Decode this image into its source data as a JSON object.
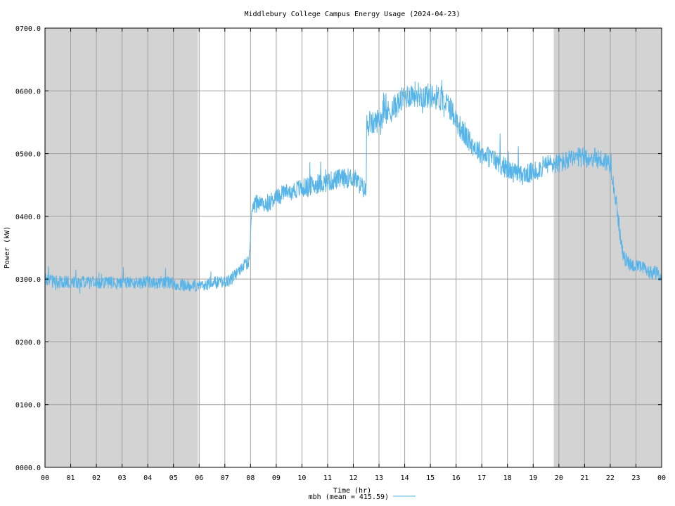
{
  "chart_data": {
    "type": "line",
    "title": "Middlebury College Campus Energy Usage (2024-04-23)",
    "xlabel": "Time (hr)",
    "ylabel": "Power (kW)",
    "xlim": [
      0,
      24
    ],
    "ylim": [
      0,
      700
    ],
    "x_ticks": [
      "00",
      "01",
      "02",
      "03",
      "04",
      "05",
      "06",
      "07",
      "08",
      "09",
      "10",
      "11",
      "12",
      "13",
      "14",
      "15",
      "16",
      "17",
      "18",
      "19",
      "20",
      "21",
      "22",
      "23",
      "00"
    ],
    "y_ticks": [
      "0000.0",
      "0100.0",
      "0200.0",
      "0300.0",
      "0400.0",
      "0500.0",
      "0600.0",
      "0700.0"
    ],
    "grid": true,
    "shaded_periods": [
      [
        0,
        5.95
      ],
      [
        19.8,
        24
      ]
    ],
    "colors": {
      "series": "#56b4e9",
      "shade": "#d3d3d3",
      "grid": "#a0a0a0"
    },
    "legend": {
      "label": "mbh (mean = 415.59)",
      "placement": "bottom-center"
    },
    "series": [
      {
        "name": "mbh",
        "x": [
          0,
          0.5,
          1,
          1.5,
          2,
          2.5,
          3,
          3.5,
          4,
          4.5,
          5,
          5.5,
          6,
          6.25,
          6.5,
          6.75,
          7,
          7.25,
          7.5,
          7.75,
          7.95,
          8.05,
          8.2,
          8.4,
          8.6,
          9,
          9.5,
          10,
          10.5,
          11,
          11.5,
          12,
          12.5,
          12.52,
          12.8,
          13,
          13.5,
          14,
          14.25,
          14.5,
          14.75,
          15,
          15.25,
          15.5,
          15.75,
          16,
          16.25,
          16.5,
          16.75,
          17,
          17.5,
          18,
          18.5,
          19,
          19.5,
          20,
          20.5,
          21,
          21.5,
          22,
          22.1,
          22.3,
          22.5,
          22.75,
          23,
          23.25,
          23.5,
          23.75,
          24
        ],
        "y": [
          300,
          295,
          296,
          295,
          293,
          294,
          293,
          295,
          294,
          295,
          293,
          290,
          290,
          291,
          293,
          295,
          295,
          300,
          312,
          322,
          330,
          415,
          420,
          418,
          420,
          430,
          440,
          445,
          450,
          455,
          460,
          462,
          440,
          545,
          548,
          555,
          570,
          590,
          595,
          595,
          592,
          592,
          590,
          585,
          575,
          555,
          535,
          520,
          510,
          500,
          490,
          475,
          465,
          470,
          482,
          485,
          490,
          495,
          492,
          485,
          460,
          400,
          335,
          325,
          320,
          318,
          312,
          310,
          305
        ]
      }
    ]
  }
}
